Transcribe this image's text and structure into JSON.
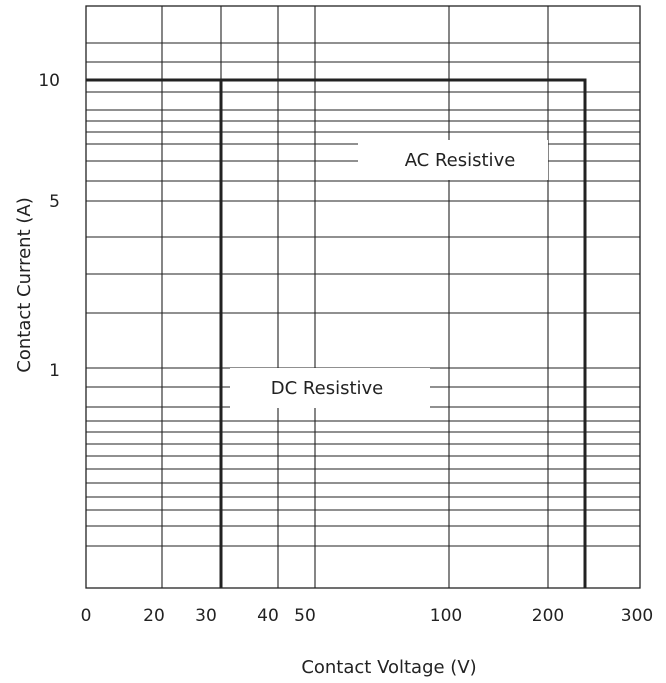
{
  "chart_data": {
    "type": "line",
    "xlabel": "Contact Voltage (V)",
    "ylabel": "Contact Current (A)",
    "x_ticks": [
      "0",
      "20",
      "30",
      "40",
      "50",
      "100",
      "200",
      "300"
    ],
    "y_ticks": [
      "10",
      "5",
      "1"
    ],
    "grid": true,
    "series": [
      {
        "name": "AC Resistive",
        "points": [
          [
            0,
            10
          ],
          [
            250,
            10
          ],
          [
            250,
            0
          ]
        ]
      },
      {
        "name": "DC Resistive",
        "points": [
          [
            0,
            10
          ],
          [
            30,
            10
          ],
          [
            30,
            0
          ]
        ]
      }
    ]
  }
}
